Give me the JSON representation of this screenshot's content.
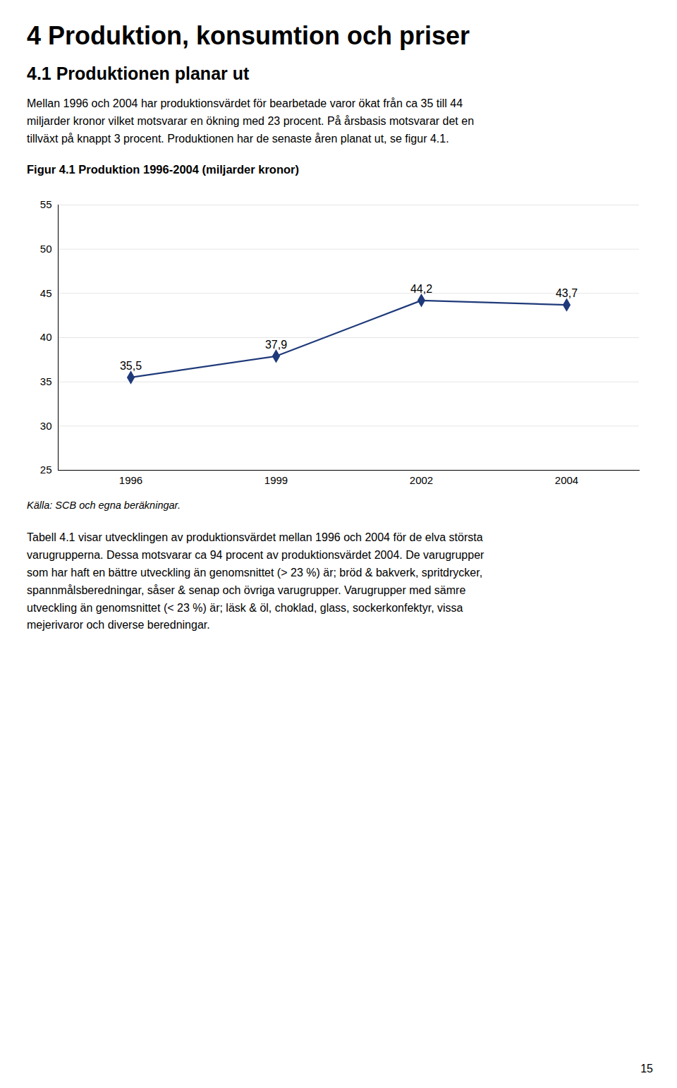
{
  "page_title": "4 Produktion, konsumtion och priser",
  "section_title": "4.1 Produktionen planar ut",
  "body_text": [
    "Mellan 1996 och 2004 har produktionsvärdet för bearbetade varor ökat från ca 35 till 44\nmiljarder kronor vilket motsvarar en ökning med 23 procent. På årsbasis motsvarar det en\ntillväxt på knappt 3 procent. Produktionen har de senaste åren planat ut, se figur 4.1.",
    "Tabell 4.1 visar utvecklingen av produktionsvärdet mellan 1996 och 2004 för de elva största\nvarugrupperna. Dessa motsvarar ca 94 procent av produktionsvärdet 2004. De varugrupper\nsom har haft en bättre utveckling än genomsnittet (> 23 %) är; bröd & bakverk, spritdrycker,\nspannmålsberedningar, såser & senap och övriga varugrupper. Varugrupper med sämre\nutveckling än genomsnittet (< 23 %) är; läsk & öl, choklad, glass, sockerkonfektyr, vissa\nmejerivaror och diverse beredningar."
  ],
  "source": "Källa: SCB och egna beräkningar.",
  "page_number": "15",
  "chart_data": {
    "type": "line",
    "title": "Figur 4.1 Produktion 1996-2004 (miljarder kronor)",
    "categories": [
      "1996",
      "1999",
      "2002",
      "2004"
    ],
    "values": [
      35.5,
      37.9,
      44.2,
      43.7
    ],
    "value_labels": [
      "35,5",
      "37,9",
      "44,2",
      "43,7"
    ],
    "data_labels": true,
    "color": "#1F3A7A",
    "marker": "diamond",
    "ylim": [
      25,
      55
    ],
    "yticks": [
      55,
      50,
      45,
      40,
      35,
      30,
      25
    ],
    "grid": true
  }
}
